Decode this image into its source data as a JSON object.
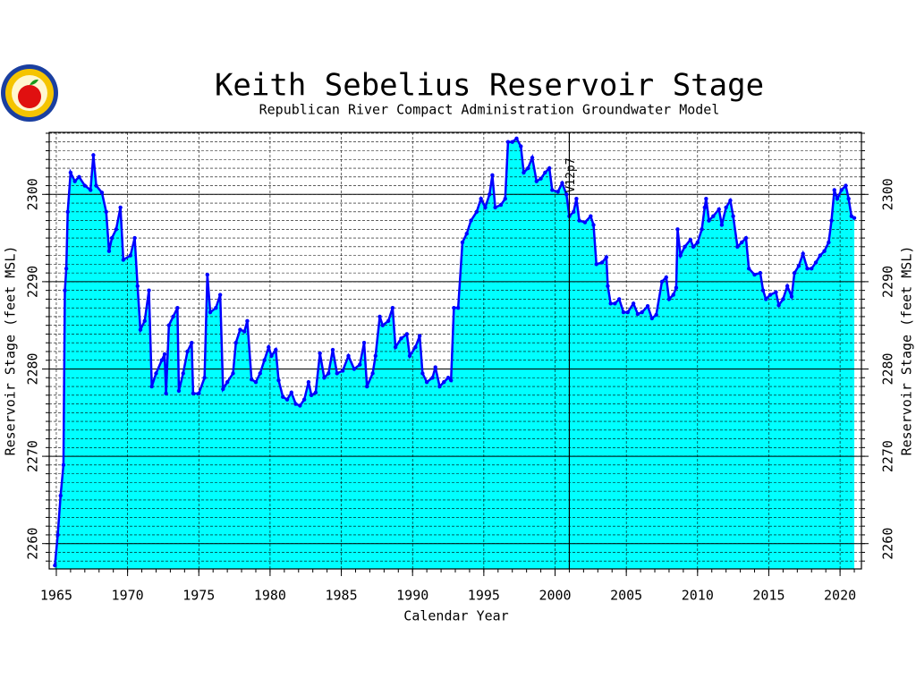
{
  "chart_data": {
    "type": "area",
    "title": "Keith Sebelius Reservoir Stage",
    "subtitle": "Republican River Compact Administration Groundwater Model",
    "x_label": "Calendar Year",
    "y_label": "Reservoir Stage (feet MSL)",
    "y2_label": "Reservoir Stage (feet MSL)",
    "annotations": [
      {
        "x": 2001,
        "text": "V12p7"
      }
    ],
    "xlim": [
      1964.5,
      2021.5
    ],
    "xticks": [
      1965,
      1970,
      1975,
      1980,
      1985,
      1990,
      1995,
      2000,
      2005,
      2010,
      2015,
      2020
    ],
    "ylim": [
      2257.1,
      2307.1
    ],
    "yticks": [
      2260,
      2270,
      2280,
      2290,
      2300
    ],
    "minor_grid_step": 1,
    "grid": true,
    "fill_color": "#00ffff",
    "line_color": "#0000ff",
    "x": [
      1964.9,
      1965.1,
      1965.3,
      1965.5,
      1965.6,
      1965.7,
      1965.8,
      1966.0,
      1966.3,
      1966.6,
      1967.0,
      1967.4,
      1967.6,
      1967.8,
      1968.2,
      1968.5,
      1968.7,
      1968.9,
      1969.2,
      1969.5,
      1969.7,
      1970.2,
      1970.5,
      1970.7,
      1970.9,
      1971.2,
      1971.5,
      1971.7,
      1972.0,
      1972.4,
      1972.6,
      1972.7,
      1972.9,
      1973.2,
      1973.5,
      1973.6,
      1973.9,
      1974.2,
      1974.5,
      1974.6,
      1975.0,
      1975.4,
      1975.6,
      1975.8,
      1976.2,
      1976.5,
      1976.7,
      1977.0,
      1977.4,
      1977.6,
      1977.9,
      1978.2,
      1978.4,
      1978.7,
      1979.0,
      1979.3,
      1979.6,
      1979.9,
      1980.1,
      1980.4,
      1980.6,
      1980.9,
      1981.2,
      1981.5,
      1981.8,
      1982.1,
      1982.4,
      1982.7,
      1982.9,
      1983.2,
      1983.5,
      1983.8,
      1984.1,
      1984.4,
      1984.7,
      1985.1,
      1985.5,
      1985.9,
      1986.3,
      1986.6,
      1986.8,
      1987.2,
      1987.4,
      1987.7,
      1987.9,
      1988.3,
      1988.6,
      1988.8,
      1989.2,
      1989.6,
      1989.8,
      1990.2,
      1990.5,
      1990.7,
      1991.0,
      1991.4,
      1991.6,
      1991.9,
      1992.2,
      1992.5,
      1992.7,
      1992.9,
      1993.2,
      1993.5,
      1993.8,
      1994.1,
      1994.5,
      1994.8,
      1995.1,
      1995.4,
      1995.6,
      1995.8,
      1996.2,
      1996.5,
      1996.7,
      1997.0,
      1997.3,
      1997.6,
      1997.8,
      1998.1,
      1998.4,
      1998.7,
      1999.0,
      1999.3,
      1999.6,
      1999.8,
      2000.2,
      2000.5,
      2000.8,
      2001.0,
      2001.3,
      2001.5,
      2001.7,
      2002.1,
      2002.5,
      2002.7,
      2002.9,
      2003.3,
      2003.6,
      2003.7,
      2003.9,
      2004.2,
      2004.5,
      2004.8,
      2005.1,
      2005.5,
      2005.8,
      2006.1,
      2006.5,
      2006.8,
      2007.1,
      2007.5,
      2007.8,
      2008.0,
      2008.3,
      2008.5,
      2008.6,
      2008.8,
      2009.1,
      2009.5,
      2009.7,
      2010.0,
      2010.3,
      2010.5,
      2010.6,
      2010.8,
      2011.1,
      2011.5,
      2011.7,
      2012.0,
      2012.3,
      2012.5,
      2012.8,
      2013.1,
      2013.4,
      2013.6,
      2014.0,
      2014.4,
      2014.6,
      2014.8,
      2015.1,
      2015.5,
      2015.7,
      2016.0,
      2016.3,
      2016.6,
      2016.8,
      2017.1,
      2017.4,
      2017.7,
      2018.0,
      2018.3,
      2018.6,
      2018.9,
      2019.2,
      2019.4,
      2019.6,
      2019.8,
      2020.1,
      2020.4,
      2020.6,
      2020.8,
      2021.0
    ],
    "values": [
      2257.5,
      2261,
      2265.5,
      2269,
      2289,
      2291.5,
      2298,
      2302.5,
      2301.5,
      2302,
      2301,
      2300.5,
      2304.5,
      2301,
      2300.2,
      2298,
      2293.5,
      2295,
      2296,
      2298.5,
      2292.5,
      2293,
      2295,
      2289.5,
      2284.5,
      2285.5,
      2289,
      2278,
      2279.5,
      2281,
      2281.7,
      2277.2,
      2285,
      2286,
      2287,
      2277.5,
      2279.5,
      2282,
      2283,
      2277.2,
      2277.2,
      2279,
      2290.8,
      2286.5,
      2287,
      2288.5,
      2277.7,
      2278.5,
      2279.5,
      2283,
      2284.5,
      2284.3,
      2285.5,
      2278.8,
      2278.5,
      2279.5,
      2281,
      2282.5,
      2281.5,
      2282.2,
      2278.7,
      2276.8,
      2276.5,
      2277.3,
      2276,
      2275.8,
      2276.5,
      2278.5,
      2277,
      2277.3,
      2281.8,
      2279,
      2279.5,
      2282.2,
      2279.5,
      2279.8,
      2281.5,
      2280,
      2280.5,
      2283,
      2278,
      2279.5,
      2281.5,
      2286,
      2285,
      2285.5,
      2287,
      2282.5,
      2283.5,
      2284,
      2281.5,
      2282.5,
      2283.8,
      2279.5,
      2278.5,
      2279,
      2280.2,
      2278,
      2278.5,
      2279,
      2278.7,
      2287,
      2287,
      2294.5,
      2295.5,
      2297,
      2298,
      2299.5,
      2298.5,
      2300,
      2302.2,
      2298.5,
      2298.8,
      2299.5,
      2306,
      2306,
      2306.4,
      2305.5,
      2302.5,
      2303,
      2304.2,
      2301.5,
      2301.8,
      2302.5,
      2303,
      2300.5,
      2300.3,
      2301.3,
      2300,
      2297.5,
      2298,
      2299.5,
      2297,
      2296.8,
      2297.5,
      2296.5,
      2292,
      2292.2,
      2292.8,
      2289.5,
      2287.5,
      2287.5,
      2288,
      2286.5,
      2286.5,
      2287.5,
      2286.3,
      2286.5,
      2287.2,
      2285.8,
      2286.2,
      2290,
      2290.5,
      2288,
      2288.5,
      2289.3,
      2296,
      2293,
      2294,
      2294.8,
      2294,
      2294.5,
      2296,
      2298.5,
      2299.5,
      2297,
      2297.5,
      2298.3,
      2296.5,
      2298.5,
      2299.3,
      2297.5,
      2294,
      2294.5,
      2295,
      2291.5,
      2290.8,
      2291,
      2289,
      2288,
      2288.5,
      2288.8,
      2287.3,
      2288,
      2289.5,
      2288.3,
      2291,
      2291.8,
      2293.2,
      2291.5,
      2291.5,
      2292.2,
      2293,
      2293.5,
      2294.5,
      2297,
      2300.5,
      2299.5,
      2300.5,
      2301,
      2299.5,
      2297.5,
      2297.3
    ]
  }
}
